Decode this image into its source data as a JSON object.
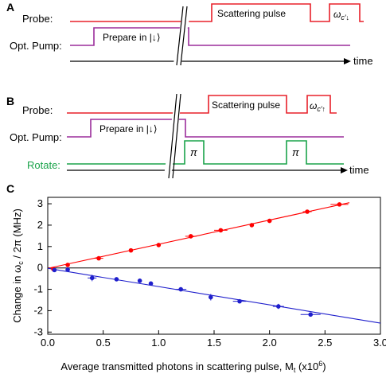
{
  "panels": {
    "A": {
      "letter": "A",
      "labels": {
        "probe": "Probe:",
        "pump": "Opt. Pump:"
      },
      "boxes": {
        "prepare": "Prepare in |↓⟩",
        "scatter": "Scattering pulse",
        "omega_main": "ω",
        "omega_sub": "c′↓"
      },
      "time_label": "time"
    },
    "B": {
      "letter": "B",
      "labels": {
        "probe": "Probe:",
        "pump": "Opt. Pump:",
        "rotate": "Rotate:"
      },
      "boxes": {
        "prepare": "Prepare in |↓⟩",
        "scatter": "Scattering pulse",
        "omega_main": "ω",
        "omega_sub": "c′↑",
        "pi1": "π",
        "pi2": "π"
      },
      "time_label": "time"
    },
    "C": {
      "letter": "C"
    }
  },
  "colors": {
    "probe": "#e8202a",
    "pump": "#9b2d9b",
    "rotate": "#1aa34a",
    "axis": "#000000",
    "red_series": "#ff0000",
    "blue_series": "#1f1fcc"
  },
  "chart_data": {
    "type": "scatter",
    "xlabel": "Average transmitted photons in scattering pulse, M",
    "xlabel_sub": "t",
    "xlabel_unit": " (x10",
    "xlabel_sup": "6",
    "xlabel_end": ")",
    "ylabel": "Change in ω",
    "ylabel_sub": "c",
    "ylabel_end": " / 2π (MHz)",
    "xlim": [
      0,
      3.0
    ],
    "ylim": [
      -3.1,
      3.3
    ],
    "xticks": [
      "0.0",
      "0.5",
      "1.0",
      "1.5",
      "2.0",
      "2.5",
      "3.0"
    ],
    "xtick_values": [
      0,
      0.5,
      1.0,
      1.5,
      2.0,
      2.5,
      3.0
    ],
    "yticks": [
      "-3",
      "-2",
      "-1",
      "0",
      "1",
      "2",
      "3"
    ],
    "ytick_values": [
      -3,
      -2,
      -1,
      0,
      1,
      2,
      3
    ],
    "series": [
      {
        "color": "red",
        "x": [
          0.05,
          0.18,
          0.46,
          0.75,
          1.0,
          1.29,
          1.56,
          1.84,
          2.0,
          2.34,
          2.63
        ],
        "y": [
          -0.05,
          0.14,
          0.45,
          0.82,
          1.07,
          1.48,
          1.76,
          2.0,
          2.2,
          2.63,
          2.97
        ],
        "xerr": [
          0.0,
          0.0,
          0.04,
          0.0,
          0.0,
          0.05,
          0.06,
          0.0,
          0.0,
          0.04,
          0.08
        ],
        "yerr": [
          0.06,
          0.06,
          0.06,
          0.06,
          0.06,
          0.1,
          0.08,
          0.06,
          0.06,
          0.06,
          0.06
        ],
        "fit": {
          "x": [
            0,
            2.72
          ],
          "y": [
            -0.02,
            3.05
          ]
        }
      },
      {
        "color": "blue",
        "x": [
          0.06,
          0.18,
          0.4,
          0.62,
          0.83,
          0.93,
          1.2,
          1.47,
          1.73,
          2.08,
          2.37
        ],
        "y": [
          -0.1,
          -0.08,
          -0.47,
          -0.53,
          -0.6,
          -0.73,
          -1.0,
          -1.37,
          -1.56,
          -1.8,
          -2.18
        ],
        "xerr": [
          0.0,
          0.0,
          0.04,
          0.0,
          0.0,
          0.0,
          0.05,
          0.0,
          0.06,
          0.05,
          0.09
        ],
        "yerr": [
          0.06,
          0.06,
          0.15,
          0.06,
          0.1,
          0.06,
          0.1,
          0.15,
          0.1,
          0.12,
          0.08
        ],
        "fit": {
          "x": [
            0,
            3.0
          ],
          "y": [
            -0.02,
            -2.58
          ]
        }
      }
    ],
    "zero_line": 0,
    "grid": false
  }
}
